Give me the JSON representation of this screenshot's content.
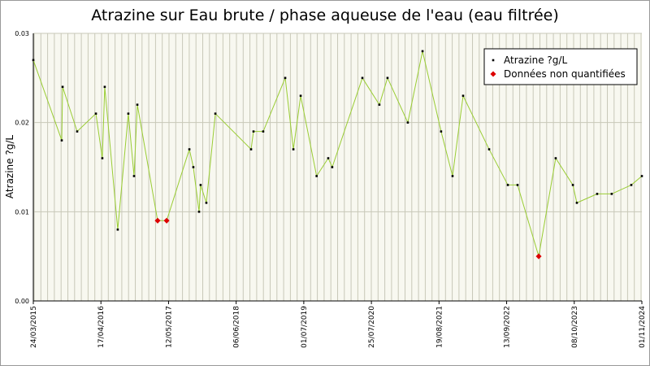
{
  "chart_data": {
    "type": "line",
    "title": "Atrazine sur Eau brute / phase aqueuse de l'eau (eau filtrée)",
    "y_label": "Atrazine ?g/L",
    "x": [
      "24/03/2015",
      "04/09/2015",
      "09/09/2015",
      "02/12/2015",
      "19/03/2016",
      "25/04/2016",
      "09/05/2016",
      "23/07/2016",
      "22/09/2016",
      "25/10/2016",
      "13/11/2016",
      "10/03/2017",
      "01/05/2017",
      "09/09/2017",
      "02/10/2017",
      "04/11/2017",
      "13/11/2017",
      "16/12/2017",
      "06/02/2018",
      "31/08/2018",
      "14/09/2018",
      "09/11/2018",
      "16/03/2019",
      "02/05/2019",
      "13/06/2019",
      "13/09/2019",
      "19/11/2019",
      "12/12/2019",
      "03/06/2020",
      "09/09/2020",
      "26/10/2020",
      "20/02/2021",
      "16/05/2021",
      "31/08/2021",
      "05/11/2021",
      "05/01/2022",
      "04/06/2022",
      "20/09/2022",
      "15/11/2022",
      "17/03/2023",
      "23/06/2023",
      "30/09/2023",
      "23/10/2023",
      "17/02/2024",
      "11/05/2024",
      "01/09/2024",
      "01/11/2024"
    ],
    "series": [
      {
        "name": "Atrazine ?g/L",
        "color": "#000000",
        "line_color": "#99cc33",
        "values": [
          0.027,
          0.018,
          0.024,
          0.019,
          0.021,
          0.016,
          0.024,
          0.008,
          0.021,
          0.014,
          0.022,
          0.009,
          0.009,
          0.017,
          0.015,
          0.01,
          0.013,
          0.011,
          0.021,
          0.017,
          0.019,
          0.019,
          0.025,
          0.017,
          0.023,
          0.014,
          0.016,
          0.015,
          0.025,
          0.022,
          0.025,
          0.02,
          0.028,
          0.019,
          0.014,
          0.023,
          0.017,
          0.013,
          0.013,
          0.005,
          0.016,
          0.013,
          0.011,
          0.012,
          0.012,
          0.013,
          0.014
        ]
      },
      {
        "name": "Données non quantifiées",
        "color": "#dd0000",
        "values": [
          null,
          null,
          null,
          null,
          null,
          null,
          null,
          null,
          null,
          null,
          null,
          0.009,
          0.009,
          null,
          null,
          null,
          null,
          null,
          null,
          null,
          null,
          null,
          null,
          null,
          null,
          null,
          null,
          null,
          null,
          null,
          null,
          null,
          null,
          null,
          null,
          null,
          null,
          null,
          null,
          0.005,
          null,
          null,
          null,
          null,
          null,
          null,
          null
        ]
      }
    ],
    "xlim": [
      "24/03/2015",
      "01/11/2024"
    ],
    "xticks": [
      "24/03/2015",
      "17/04/2016",
      "12/05/2017",
      "06/06/2018",
      "01/07/2019",
      "25/07/2020",
      "19/08/2021",
      "13/09/2022",
      "08/10/2023",
      "01/11/2024"
    ],
    "ylim": [
      0,
      0.03
    ],
    "yticks": [
      {
        "value": 0,
        "label": "0.00"
      },
      0.01,
      0.02,
      0.03
    ],
    "grid": true,
    "legend": "top-right"
  }
}
